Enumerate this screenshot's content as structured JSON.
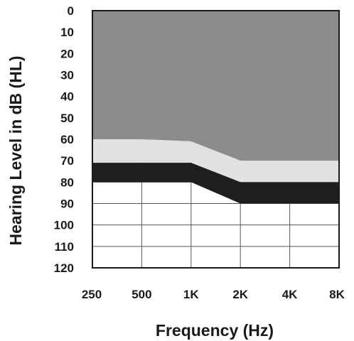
{
  "chart_data": {
    "type": "area",
    "xlabel": "Frequency (Hz)",
    "ylabel": "Hearing Level in dB (HL)",
    "x": [
      "250",
      "500",
      "1K",
      "2K",
      "4K",
      "8K"
    ],
    "y_ticks": [
      "0",
      "10",
      "20",
      "30",
      "40",
      "50",
      "60",
      "70",
      "80",
      "90",
      "100",
      "110",
      "120"
    ],
    "ylim": [
      0,
      120
    ],
    "y_inverted": true,
    "grid": true,
    "bands": [
      {
        "color": "#8c8c8c",
        "from": [
          0,
          0,
          0,
          0,
          0,
          0
        ],
        "to": [
          60,
          60,
          61,
          70,
          70,
          70
        ]
      },
      {
        "color": "#e1e1e1",
        "from": [
          60,
          60,
          61,
          70,
          70,
          70
        ],
        "to": [
          71,
          71,
          71,
          80,
          80,
          80
        ]
      },
      {
        "color": "#1e1e1e",
        "from": [
          71,
          71,
          71,
          80,
          80,
          80
        ],
        "to": [
          80,
          80,
          80,
          90,
          90,
          90
        ]
      }
    ]
  }
}
